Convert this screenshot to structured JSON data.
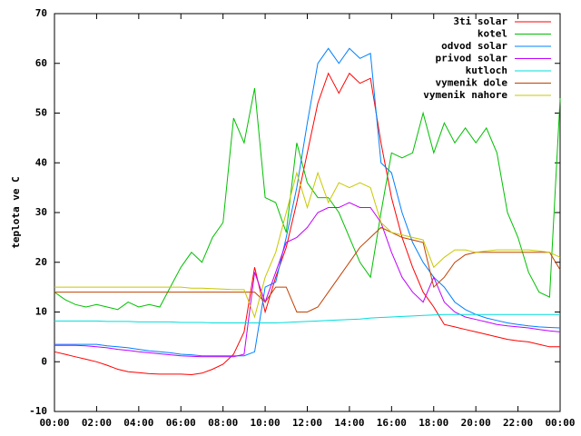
{
  "chart_data": {
    "type": "line",
    "ylabel": "teplota ve C",
    "x": [
      0,
      0.5,
      1,
      1.5,
      2,
      2.5,
      3,
      3.5,
      4,
      4.5,
      5,
      5.5,
      6,
      6.5,
      7,
      7.5,
      8,
      8.5,
      9,
      9.5,
      10,
      10.5,
      11,
      11.5,
      12,
      12.5,
      13,
      13.5,
      14,
      14.5,
      15,
      15.5,
      16,
      16.5,
      17,
      17.5,
      18,
      18.5,
      19,
      19.5,
      20,
      20.5,
      21,
      21.5,
      22,
      22.5,
      23,
      23.5,
      24
    ],
    "xlim": [
      0,
      24
    ],
    "xticks": [
      {
        "value": 0,
        "label": "00:00"
      },
      {
        "value": 2,
        "label": "02:00"
      },
      {
        "value": 4,
        "label": "04:00"
      },
      {
        "value": 6,
        "label": "06:00"
      },
      {
        "value": 8,
        "label": "08:00"
      },
      {
        "value": 10,
        "label": "10:00"
      },
      {
        "value": 12,
        "label": "12:00"
      },
      {
        "value": 14,
        "label": "14:00"
      },
      {
        "value": 16,
        "label": "16:00"
      },
      {
        "value": 18,
        "label": "18:00"
      },
      {
        "value": 20,
        "label": "20:00"
      },
      {
        "value": 22,
        "label": "22:00"
      },
      {
        "value": 24,
        "label": "00:00"
      }
    ],
    "ylim": [
      -10,
      70
    ],
    "yticks": [
      -10,
      0,
      10,
      20,
      30,
      40,
      50,
      60,
      70
    ],
    "grid": false,
    "legend": "top-right",
    "series": [
      {
        "name": "3ti solar",
        "color": "#ff0000",
        "values": [
          2,
          1.5,
          1,
          0.5,
          0,
          -0.7,
          -1.5,
          -2,
          -2.2,
          -2.4,
          -2.5,
          -2.5,
          -2.5,
          -2.6,
          -2.3,
          -1.5,
          -0.5,
          1.5,
          6,
          19,
          10,
          17,
          23,
          32,
          42,
          52,
          58,
          54,
          58,
          56,
          57,
          44,
          33,
          25,
          19,
          14,
          11,
          7.5,
          7,
          6.5,
          6,
          5.5,
          5,
          4.5,
          4.2,
          4,
          3.5,
          3,
          3
        ]
      },
      {
        "name": "kotel",
        "color": "#00c000",
        "values": [
          14,
          12.5,
          11.5,
          11,
          11.5,
          11,
          10.5,
          12,
          11,
          11.5,
          11,
          15,
          19,
          22,
          20,
          25,
          28,
          49,
          44,
          55,
          33,
          32,
          26,
          44,
          36,
          33,
          33,
          30,
          25,
          20,
          17,
          30,
          42,
          41,
          42,
          50,
          42,
          48,
          44,
          47,
          44,
          47,
          42,
          30,
          25,
          18,
          14,
          13,
          53
        ]
      },
      {
        "name": "odvod solar",
        "color": "#0080ff",
        "values": [
          3.5,
          3.5,
          3.5,
          3.5,
          3.5,
          3.2,
          3,
          2.8,
          2.5,
          2.2,
          2,
          1.8,
          1.5,
          1.4,
          1.2,
          1.2,
          1.2,
          1.2,
          1.2,
          2,
          15,
          16,
          25,
          35,
          48,
          60,
          63,
          60,
          63,
          61,
          62,
          40,
          38,
          30,
          24,
          20,
          17,
          15,
          12,
          10.5,
          9.5,
          8.8,
          8.3,
          7.8,
          7.5,
          7.2,
          7,
          6.9,
          6.8
        ]
      },
      {
        "name": "privod solar",
        "color": "#c000ff",
        "values": [
          3.3,
          3.3,
          3.3,
          3.2,
          3,
          2.8,
          2.5,
          2.3,
          2,
          1.8,
          1.6,
          1.4,
          1.2,
          1.1,
          1,
          1,
          1,
          1,
          1.5,
          18,
          12,
          18,
          24,
          25,
          27,
          30,
          31,
          31,
          32,
          31,
          31,
          28,
          22,
          17,
          14,
          12,
          17,
          12,
          10,
          9,
          8.5,
          8,
          7.5,
          7.2,
          7,
          6.8,
          6.5,
          6.2,
          6
        ]
      },
      {
        "name": "kutloch",
        "color": "#00dddd",
        "values": [
          8.2,
          8.2,
          8.2,
          8.2,
          8.2,
          8.1,
          8.1,
          8.1,
          8,
          8,
          8,
          8,
          7.9,
          7.9,
          7.9,
          7.8,
          7.8,
          7.8,
          7.8,
          7.8,
          7.8,
          7.8,
          7.9,
          8,
          8.1,
          8.2,
          8.3,
          8.4,
          8.5,
          8.6,
          8.8,
          8.9,
          9,
          9.1,
          9.2,
          9.3,
          9.4,
          9.5,
          9.5,
          9.5,
          9.5,
          9.5,
          9.5,
          9.5,
          9.5,
          9.5,
          9.5,
          9.5,
          9.5
        ]
      },
      {
        "name": "vymenik dole",
        "color": "#c04000",
        "values": [
          14,
          14,
          14,
          14,
          14,
          14,
          14,
          14,
          14,
          14,
          14,
          14,
          14,
          14,
          14,
          14,
          14,
          14,
          14,
          14,
          12,
          15,
          15,
          10,
          10,
          11,
          14,
          17,
          20,
          23,
          25,
          27,
          26,
          25,
          24.5,
          24,
          15,
          17,
          20,
          21.5,
          22,
          22,
          22,
          22,
          22,
          22,
          22,
          22,
          18.5
        ]
      },
      {
        "name": "vymenik nahore",
        "color": "#c8c800",
        "values": [
          15,
          15,
          15,
          15,
          15,
          15,
          15,
          15,
          15,
          15,
          15,
          15,
          15,
          14.8,
          14.8,
          14.7,
          14.6,
          14.5,
          14.5,
          9,
          17,
          22,
          30,
          38,
          31,
          38,
          32,
          36,
          35,
          36,
          35,
          28,
          26,
          25.5,
          25,
          24.5,
          19,
          21,
          22.5,
          22.5,
          22,
          22.3,
          22.5,
          22.5,
          22.5,
          22.5,
          22.3,
          22,
          21
        ]
      }
    ]
  }
}
